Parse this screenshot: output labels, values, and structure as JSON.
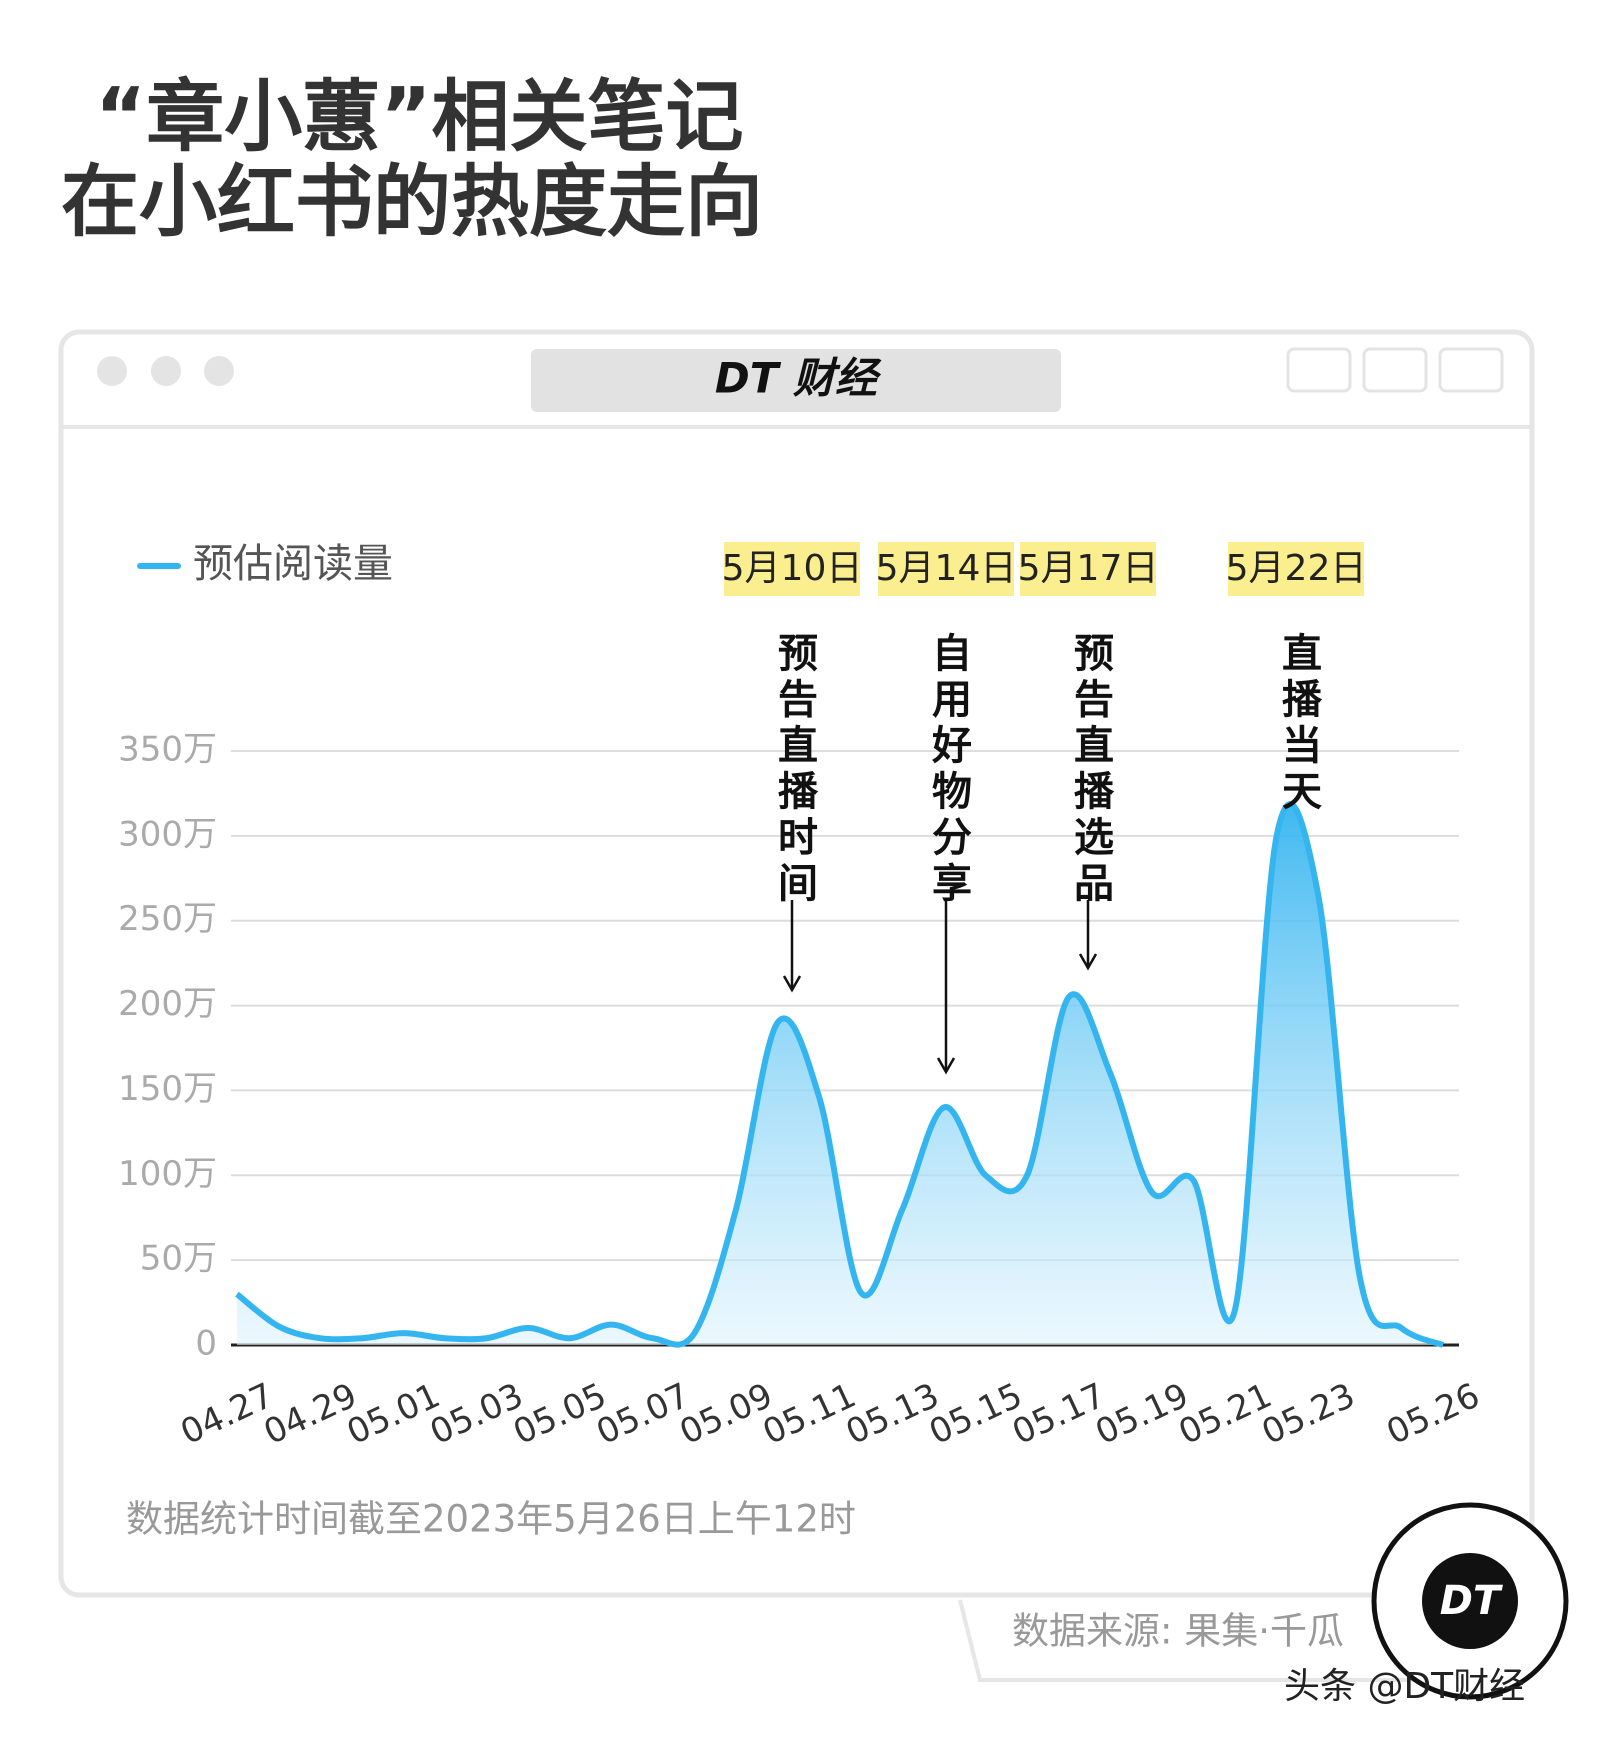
{
  "chart_data": {
    "type": "area",
    "title": [
      "“章小蕙”相关笔记",
      "在小红书的热度走向"
    ],
    "brand": "DT 财经",
    "series": [
      {
        "name": "预估阅读量",
        "color": "#35b5f0",
        "values": [
          30,
          11,
          4,
          4,
          7,
          4,
          4,
          10,
          4,
          12,
          4,
          7,
          80,
          190,
          146,
          31,
          80,
          140,
          100,
          100,
          205,
          160,
          90,
          97,
          21,
          300,
          265,
          40,
          10,
          0
        ]
      }
    ],
    "categories": [
      "04.27",
      null,
      "04.29",
      null,
      "05.01",
      null,
      "05.03",
      null,
      "05.05",
      null,
      "05.07",
      null,
      "05.09",
      null,
      "05.11",
      null,
      "05.13",
      null,
      "05.15",
      null,
      "05.17",
      null,
      "05.19",
      null,
      "05.21",
      null,
      "05.23",
      null,
      null,
      "05.26"
    ],
    "ylim": [
      0,
      350
    ],
    "yticks": [
      0,
      {
        "value": 50,
        "label": "50万"
      },
      {
        "value": 100,
        "label": "100万"
      },
      {
        "value": 150,
        "label": "150万"
      },
      {
        "value": 200,
        "label": "200万"
      },
      {
        "value": 250,
        "label": "250万"
      },
      {
        "value": 300,
        "label": "300万"
      },
      {
        "value": 350,
        "label": "350万"
      }
    ],
    "grid": true,
    "annotations": [
      {
        "label": "5月10日",
        "text": "预告直播时间"
      },
      {
        "label": "5月14日",
        "text": "自用好物分享"
      },
      {
        "label": "5月17日",
        "text": "预告直播选品"
      },
      {
        "label": "5月22日",
        "text": "直播当天"
      }
    ],
    "note": "数据统计时间截至2023年5月26日上午12时",
    "source": "数据来源: 果集·千瓜",
    "logo": "DT",
    "watermark": "头条 @DT财经"
  }
}
